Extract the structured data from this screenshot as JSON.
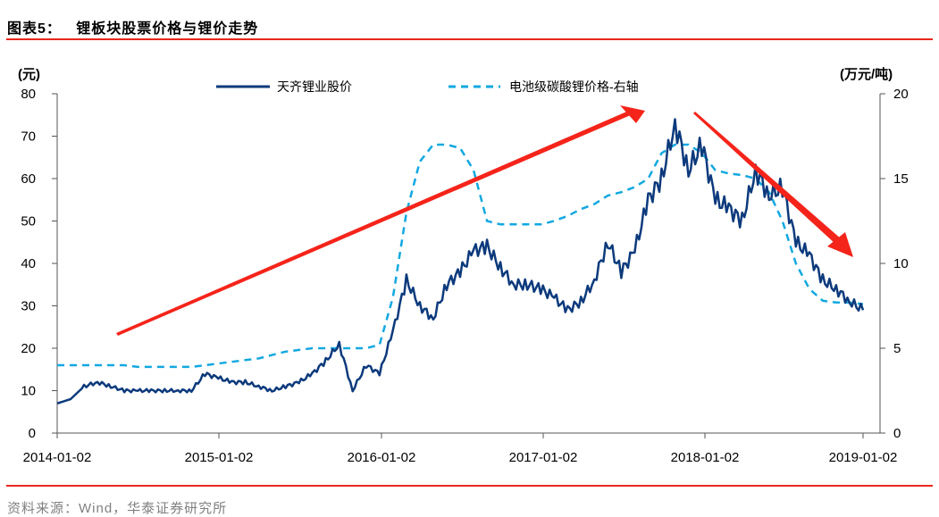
{
  "header": {
    "figure_label": "图表5：",
    "title": "锂板块股票价格与锂价走势"
  },
  "footer": {
    "source": "资料来源：Wind，华泰证券研究所"
  },
  "colors": {
    "stock_line": "#0c3a7c",
    "lithium_line": "#12a8e0",
    "arrow": "#f5241a",
    "rule": "#e8271c",
    "axis": "#555555"
  },
  "chart_data": {
    "type": "line",
    "title": "锂板块股票价格与锂价走势",
    "xlabel": "",
    "ylabel": "(元)",
    "ylabel_right": "(万元/吨)",
    "ylim": [
      0,
      80
    ],
    "ylim_right": [
      0,
      20
    ],
    "yticks": [
      0,
      10,
      20,
      30,
      40,
      50,
      60,
      70,
      80
    ],
    "yticks_right": [
      0,
      5,
      10,
      15,
      20
    ],
    "xticks": [
      "2014-01-02",
      "2015-01-02",
      "2016-01-02",
      "2017-01-02",
      "2018-01-02",
      "2019-01-02"
    ],
    "grid": false,
    "legend_position": "top",
    "legend": [
      "天齐锂业股价",
      "电池级碳酸锂价格-右轴"
    ],
    "x": [
      "2014-01",
      "2014-02",
      "2014-03",
      "2014-04",
      "2014-05",
      "2014-06",
      "2014-07",
      "2014-08",
      "2014-09",
      "2014-10",
      "2014-11",
      "2014-12",
      "2015-01",
      "2015-02",
      "2015-03",
      "2015-04",
      "2015-05",
      "2015-06",
      "2015-07",
      "2015-08",
      "2015-09",
      "2015-10",
      "2015-11",
      "2015-12",
      "2016-01",
      "2016-02",
      "2016-03",
      "2016-04",
      "2016-05",
      "2016-06",
      "2016-07",
      "2016-08",
      "2016-09",
      "2016-10",
      "2016-11",
      "2016-12",
      "2017-01",
      "2017-02",
      "2017-03",
      "2017-04",
      "2017-05",
      "2017-06",
      "2017-07",
      "2017-08",
      "2017-09",
      "2017-10",
      "2017-11",
      "2017-12",
      "2018-01",
      "2018-02",
      "2018-03",
      "2018-04",
      "2018-05",
      "2018-06",
      "2018-07",
      "2018-08",
      "2018-09",
      "2018-10",
      "2018-11",
      "2018-12",
      "2019-01"
    ],
    "series": [
      {
        "name": "天齐锂业股价",
        "axis": "left",
        "style": "solid",
        "values": [
          7,
          8,
          11,
          12,
          11,
          10,
          10,
          10,
          10,
          10,
          10,
          14,
          13,
          12,
          12,
          11,
          10,
          11,
          12,
          14,
          17,
          21,
          10,
          16,
          14,
          24,
          36,
          30,
          27,
          35,
          38,
          43,
          44,
          39,
          35,
          35,
          34,
          32,
          29,
          31,
          36,
          45,
          38,
          43,
          55,
          60,
          73,
          62,
          68,
          55,
          53,
          50,
          62,
          56,
          58,
          45,
          42,
          36,
          34,
          31,
          29
        ]
      },
      {
        "name": "电池级碳酸锂价格-右轴",
        "axis": "right",
        "style": "dashed",
        "values": [
          4.0,
          4.0,
          4.0,
          4.0,
          4.0,
          4.0,
          3.9,
          3.9,
          3.9,
          3.9,
          3.9,
          4.0,
          4.1,
          4.2,
          4.3,
          4.4,
          4.6,
          4.8,
          4.9,
          5.0,
          5.0,
          5.0,
          5.0,
          5.0,
          5.2,
          8.0,
          13.0,
          16.0,
          17.0,
          17.0,
          16.8,
          15.5,
          12.5,
          12.3,
          12.3,
          12.3,
          12.3,
          12.5,
          12.8,
          13.2,
          13.5,
          14.0,
          14.2,
          14.5,
          15.0,
          16.5,
          17.0,
          17.0,
          16.5,
          15.5,
          15.3,
          15.2,
          15.0,
          14.2,
          12.5,
          10.0,
          8.5,
          7.8,
          7.7,
          7.7,
          7.6
        ]
      }
    ],
    "annotations": [
      {
        "type": "arrow",
        "from": "2014-04 low",
        "to": "2017-11 peak",
        "label": "uptrend"
      },
      {
        "type": "arrow",
        "from": "2017-12 peak",
        "to": "2018-11 low",
        "label": "downtrend"
      }
    ]
  }
}
